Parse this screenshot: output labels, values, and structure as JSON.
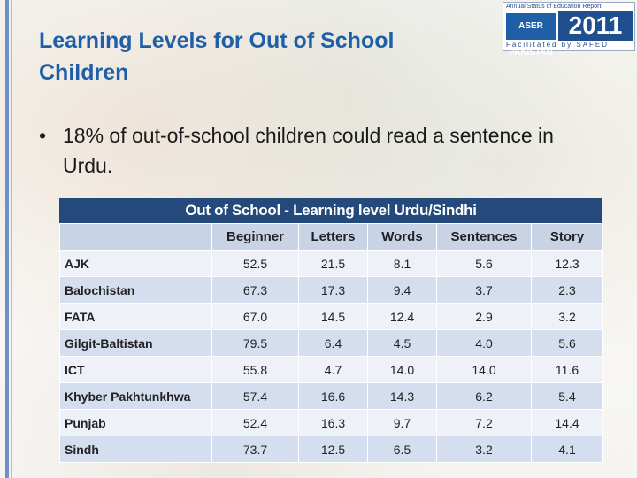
{
  "slide": {
    "title": "Learning Levels for Out of School Children",
    "bullet_glyph": "•",
    "bullet_text": "18% of out-of-school children could read a sentence in Urdu."
  },
  "logo": {
    "top_text": "Annual Status of Education Report",
    "mark_text": "ASER PAKISTAN",
    "year": "2011",
    "bottom_text": "Facilitated by SAFED"
  },
  "table": {
    "title": "Out of School - Learning level Urdu/Sindhi",
    "columns": [
      "",
      "Beginner",
      "Letters",
      "Words",
      "Sentences",
      "Story"
    ],
    "rows": [
      [
        "AJK",
        "52.5",
        "21.5",
        "8.1",
        "5.6",
        "12.3"
      ],
      [
        "Balochistan",
        "67.3",
        "17.3",
        "9.4",
        "3.7",
        "2.3"
      ],
      [
        "FATA",
        "67.0",
        "14.5",
        "12.4",
        "2.9",
        "3.2"
      ],
      [
        "Gilgit-Baltistan",
        "79.5",
        "6.4",
        "4.5",
        "4.0",
        "5.6"
      ],
      [
        "ICT",
        "55.8",
        "4.7",
        "14.0",
        "14.0",
        "11.6"
      ],
      [
        "Khyber Pakhtunkhwa",
        "57.4",
        "16.6",
        "14.3",
        "6.2",
        "5.4"
      ],
      [
        "Punjab",
        "52.4",
        "16.3",
        "9.7",
        "7.2",
        "14.4"
      ],
      [
        "Sindh",
        "73.7",
        "12.5",
        "6.5",
        "3.2",
        "4.1"
      ]
    ]
  },
  "colors": {
    "title": "#1f5fa8",
    "table_header_bg": "#244a7c",
    "column_header_bg": "#c9d3e6",
    "row_light": "#eef1f7",
    "row_dark": "#d5deee"
  }
}
